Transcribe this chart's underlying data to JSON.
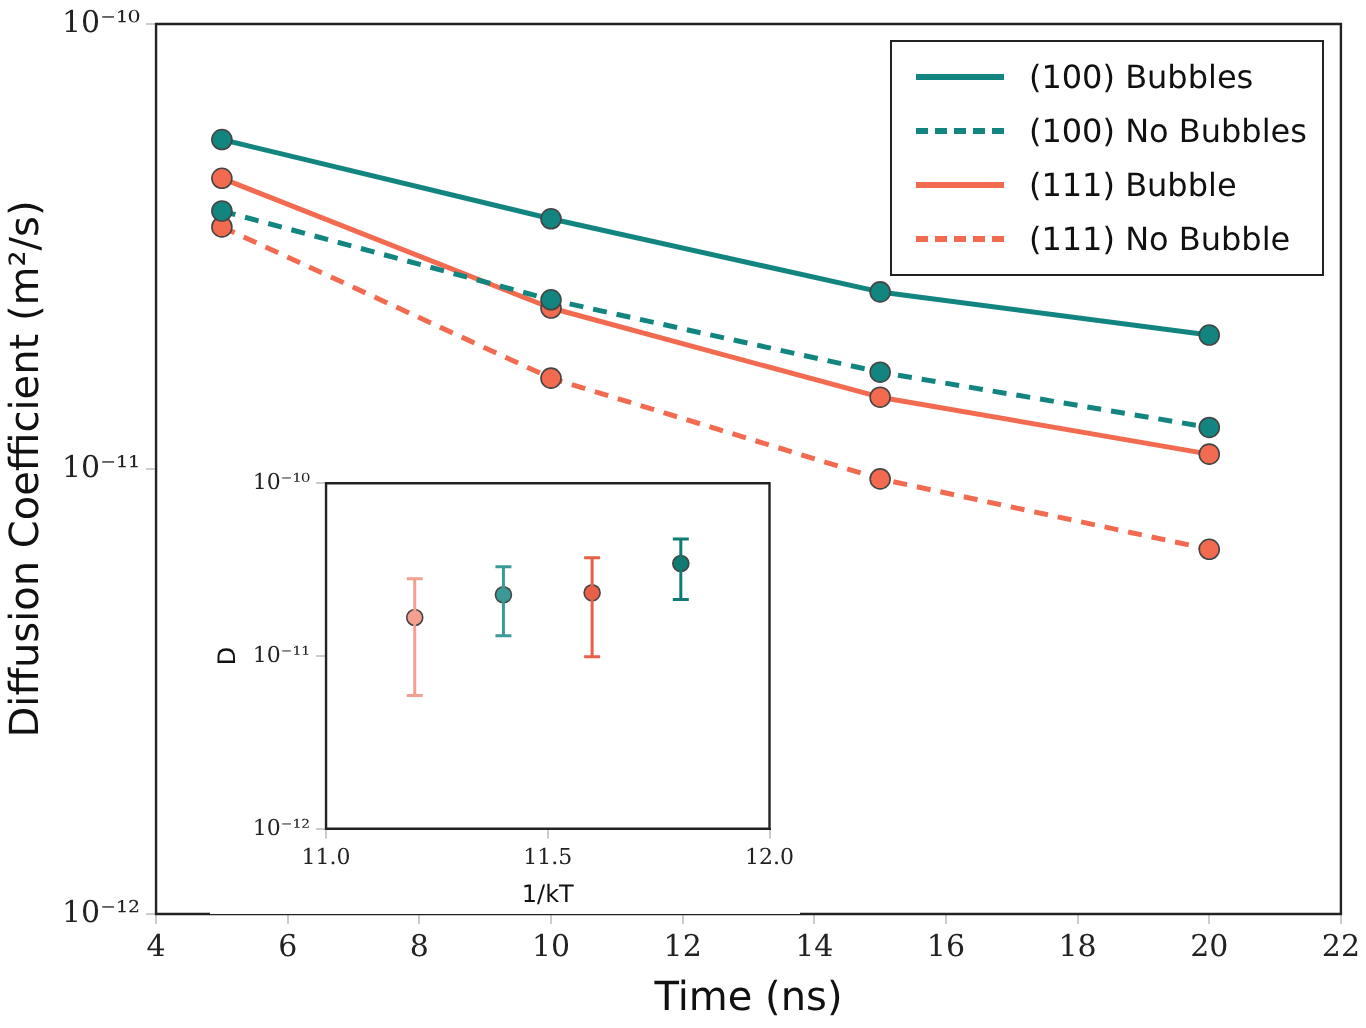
{
  "chart_data": [
    {
      "type": "line",
      "xlabel": "Time (ns)",
      "ylabel": "Diffusion Coefficient (m²/s)",
      "x": [
        5,
        10,
        15,
        20
      ],
      "log": "y",
      "grid": false,
      "legend": "top right",
      "marker": "circle",
      "xlim": [
        4,
        22
      ],
      "xticks": [
        4,
        6,
        8,
        10,
        12,
        14,
        16,
        18,
        20,
        22
      ],
      "ylim": [
        1e-12,
        1e-10
      ],
      "yticks": [
        {
          "value": 1e-12,
          "label": "10⁻¹²"
        },
        {
          "value": 1e-11,
          "label": "10⁻¹¹"
        },
        {
          "value": 1e-10,
          "label": "10⁻¹⁰"
        }
      ],
      "series": [
        {
          "name": "(100) Bubbles",
          "color": "#138580",
          "line_style": "solid",
          "values": [
            5.5e-11,
            3.65e-11,
            2.5e-11,
            2e-11
          ]
        },
        {
          "name": "(100) No Bubbles",
          "color": "#138580",
          "line_style": "dashed",
          "values": [
            3.8e-11,
            2.4e-11,
            1.65e-11,
            1.24e-11
          ]
        },
        {
          "name": "(111) Bubble",
          "color": "#f26b50",
          "line_style": "solid",
          "values": [
            4.5e-11,
            2.3e-11,
            1.45e-11,
            1.08e-11
          ]
        },
        {
          "name": "(111) No Bubble",
          "color": "#f26b50",
          "line_style": "dashed",
          "values": [
            3.5e-11,
            1.6e-11,
            9.5e-12,
            6.6e-12
          ]
        }
      ]
    },
    {
      "type": "scatter",
      "xlabel": "1/kT",
      "ylabel": "D",
      "log": "y",
      "grid": false,
      "marker": "circle",
      "xlim": [
        11.0,
        12.0
      ],
      "xticks": [
        {
          "value": 11,
          "label": "11.0"
        },
        {
          "value": 11.5,
          "label": "11.5"
        },
        {
          "value": 12,
          "label": "12.0"
        }
      ],
      "ylim": [
        1e-12,
        1e-10
      ],
      "yticks": [
        {
          "value": 1e-12,
          "label": "10⁻¹²"
        },
        {
          "value": 1e-11,
          "label": "10⁻¹¹"
        },
        {
          "value": 1e-10,
          "label": "10⁻¹⁰"
        }
      ],
      "series": [
        {
          "color": "#f4a090",
          "x": [
            11.2
          ],
          "values": [
            1.67e-11
          ],
          "errors": [
            [
              5.9e-12,
              2.8e-11
            ]
          ]
        },
        {
          "color": "#3a9a98",
          "x": [
            11.4
          ],
          "values": [
            2.26e-11
          ],
          "errors": [
            [
              1.31e-11,
              3.28e-11
            ]
          ]
        },
        {
          "color": "#e8604a",
          "x": [
            11.6
          ],
          "values": [
            2.32e-11
          ],
          "errors": [
            [
              9.9e-12,
              3.7e-11
            ]
          ]
        },
        {
          "color": "#0f7b72",
          "x": [
            11.8
          ],
          "values": [
            3.43e-11
          ],
          "errors": [
            [
              2.12e-11,
              4.75e-11
            ]
          ]
        }
      ]
    }
  ]
}
